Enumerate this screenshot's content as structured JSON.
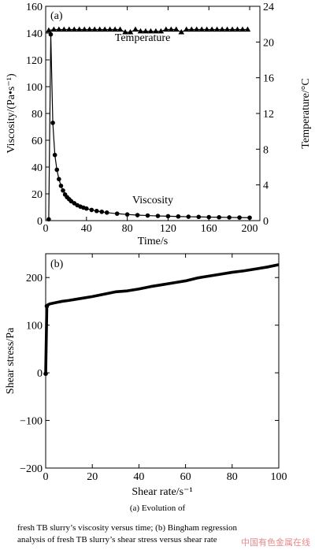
{
  "chart_data": [
    {
      "panel_label": "(a)",
      "type": "line",
      "xlabel": "Time/s",
      "ylabel": "Viscosity/(Pa•s⁻¹)",
      "y2label": "Temperature/°C",
      "xlim": [
        0,
        210
      ],
      "ylim": [
        0,
        160
      ],
      "y2lim": [
        0,
        24
      ],
      "x_ticks": [
        0,
        40,
        80,
        120,
        160,
        200
      ],
      "y_ticks": [
        0,
        20,
        40,
        60,
        80,
        100,
        120,
        140,
        160
      ],
      "y2_ticks": [
        0,
        4,
        8,
        12,
        16,
        20,
        24
      ],
      "annotations": [
        {
          "text": "Temperature",
          "x": 95,
          "y": 20.1,
          "axis": "y2"
        },
        {
          "text": "Viscosity",
          "x": 105,
          "y": 13,
          "axis": "y"
        }
      ],
      "series": [
        {
          "axis": "y",
          "marker": "circle",
          "x": [
            3,
            5,
            7,
            9,
            11,
            13,
            15,
            17,
            19,
            21,
            23,
            25,
            28,
            31,
            34,
            37,
            40,
            45,
            50,
            55,
            60,
            70,
            80,
            90,
            100,
            110,
            120,
            130,
            140,
            150,
            160,
            170,
            180,
            190,
            200
          ],
          "y": [
            1,
            139,
            73,
            49,
            38,
            31,
            26,
            22.5,
            19.5,
            17.5,
            16,
            14.5,
            13,
            11.5,
            10.5,
            9.7,
            9,
            8,
            7.2,
            6.6,
            6,
            5.2,
            4.6,
            4.1,
            3.8,
            3.5,
            3.3,
            3.1,
            2.9,
            2.8,
            2.6,
            2.5,
            2.4,
            2.3,
            2.2
          ]
        },
        {
          "axis": "y2",
          "marker": "triangle",
          "x": [
            3,
            8,
            13,
            18,
            23,
            28,
            33,
            38,
            43,
            48,
            53,
            58,
            63,
            68,
            73,
            78,
            83,
            88,
            93,
            98,
            103,
            108,
            113,
            118,
            123,
            128,
            133,
            138,
            143,
            148,
            153,
            158,
            163,
            168,
            173,
            178,
            183,
            188,
            193,
            198
          ],
          "y": [
            21.3,
            21.4,
            21.4,
            21.4,
            21.4,
            21.4,
            21.4,
            21.4,
            21.4,
            21.4,
            21.4,
            21.4,
            21.4,
            21.4,
            21.4,
            21.1,
            21.1,
            21.4,
            21.2,
            21.2,
            21.2,
            21.2,
            21.2,
            21.4,
            21.4,
            21.4,
            21.1,
            21.4,
            21.4,
            21.4,
            21.4,
            21.4,
            21.4,
            21.4,
            21.4,
            21.4,
            21.4,
            21.4,
            21.4,
            21.4
          ]
        }
      ]
    },
    {
      "panel_label": "(b)",
      "type": "line",
      "xlabel": "Shear rate/s⁻¹",
      "ylabel": "Shear stress/Pa",
      "xlim": [
        0,
        100
      ],
      "ylim": [
        -200,
        250
      ],
      "x_ticks": [
        0,
        20,
        40,
        60,
        80,
        100
      ],
      "y_ticks": [
        -200,
        -100,
        0,
        100,
        200
      ],
      "y_tick_labels": [
        "−200",
        "−100",
        "0",
        "100",
        "200"
      ],
      "series": [
        {
          "marker": "circle",
          "x": [
            0,
            0.5,
            1,
            2,
            3,
            5,
            7,
            10,
            15,
            20,
            25,
            30,
            35,
            40,
            45,
            50,
            55,
            60,
            65,
            70,
            75,
            80,
            85,
            90,
            95,
            100
          ],
          "y": [
            -2,
            140,
            143,
            145,
            146,
            148,
            150,
            152,
            156,
            160,
            165,
            170,
            172,
            176,
            181,
            185,
            189,
            193,
            199,
            203,
            207,
            211,
            214,
            218,
            222,
            227
          ]
        }
      ]
    }
  ],
  "caption": {
    "line1": "(a) Evolution of",
    "line2": "fresh TB slurry’s viscosity versus time; (b) Bingham regression",
    "line3": "analysis of fresh TB slurry’s shear stress versus shear rate"
  },
  "watermark": "中国有色金属在线"
}
